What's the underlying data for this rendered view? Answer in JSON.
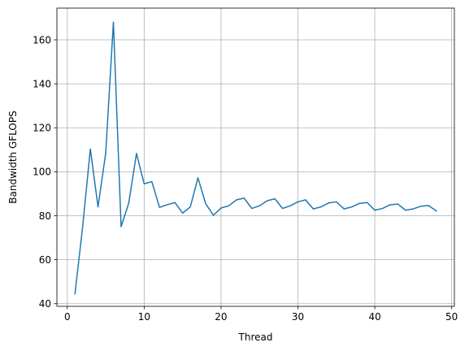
{
  "chart_data": {
    "type": "line",
    "title": "",
    "xlabel": "Thread",
    "ylabel": "Bandwidth GFLOPS",
    "xlim": [
      -1.35,
      50.35
    ],
    "ylim": [
      38.8,
      174.4
    ],
    "xticks": [
      0,
      10,
      20,
      30,
      40,
      50
    ],
    "yticks": [
      40,
      60,
      80,
      100,
      120,
      140,
      160
    ],
    "grid": true,
    "legend": "none",
    "colors": {
      "line": "#1f77b4",
      "grid": "#b0b0b0",
      "axes": "#000000"
    },
    "series": [
      {
        "x": [
          1,
          2,
          3,
          4,
          5,
          6,
          7,
          8,
          9,
          10,
          11,
          12,
          13,
          14,
          15,
          16,
          17,
          18,
          19,
          20,
          21,
          22,
          23,
          24,
          25,
          26,
          27,
          28,
          29,
          30,
          31,
          32,
          33,
          34,
          35,
          36,
          37,
          38,
          39,
          40,
          41,
          42,
          43,
          44,
          45,
          46,
          47,
          48
        ],
        "values": [
          44.5,
          75,
          110.3,
          84,
          108.5,
          168,
          75,
          85.8,
          108.3,
          94.5,
          95.5,
          83.8,
          85,
          86,
          81.2,
          84,
          97.2,
          85.5,
          80.2,
          83.5,
          84.5,
          87.2,
          88,
          83.3,
          84.5,
          86.8,
          87.7,
          83.3,
          84.5,
          86.3,
          87.2,
          83.1,
          84,
          85.8,
          86.3,
          83.1,
          84,
          85.6,
          86,
          82.5,
          83.3,
          85,
          85.3,
          82.5,
          83.1,
          84.3,
          84.6,
          82.2
        ]
      }
    ]
  }
}
